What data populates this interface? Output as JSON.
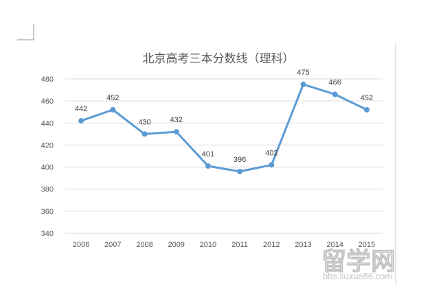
{
  "chart_data": {
    "type": "line",
    "title": "北京高考三本分数线（理科）",
    "x": [
      "2006",
      "2007",
      "2008",
      "2009",
      "2010",
      "2011",
      "2012",
      "2013",
      "2014",
      "2015"
    ],
    "series": [
      {
        "values": [
          442,
          452,
          430,
          432,
          401,
          396,
          402,
          475,
          466,
          452
        ]
      }
    ],
    "data_labels": [
      "442",
      "452",
      "430",
      "432",
      "401",
      "396",
      "402",
      "475",
      "466",
      "452"
    ],
    "y_ticks": [
      "340",
      "360",
      "380",
      "400",
      "420",
      "440",
      "460",
      "480"
    ],
    "ylim": [
      340,
      480
    ],
    "grid": true,
    "legend": "none",
    "colors": {
      "series": "#5b9bd5",
      "grid": "#d9d9d9",
      "text": "#595959"
    }
  },
  "watermark": {
    "main": "留学网",
    "sub": "bbs.liuxue86.com"
  }
}
